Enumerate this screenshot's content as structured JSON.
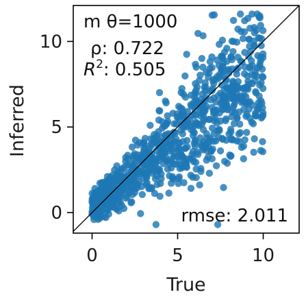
{
  "chart_data": {
    "type": "scatter",
    "xlabel": "True",
    "ylabel": "Inferred",
    "xlim": [
      -1.1,
      12.1
    ],
    "ylim": [
      -1.2,
      12.1
    ],
    "xticks": [
      0,
      5,
      10
    ],
    "yticks": [
      0,
      5,
      10
    ],
    "xtick_labels": [
      "0",
      "5",
      "10"
    ],
    "ytick_labels": [
      "0",
      "5",
      "10"
    ],
    "grid": false,
    "identity_line": true,
    "point_color": "#1f77b4",
    "annotations": {
      "title": "m θ=1000",
      "rho": "ρ: 0.722",
      "r2_sym": "R",
      "r2_sup": "2",
      "r2_val": ": 0.505",
      "rmse": "rmse: 2.011"
    },
    "points": {
      "n": 1000,
      "x_range": [
        0,
        10
      ],
      "y_range": [
        -0.7,
        11.6
      ],
      "rho": 0.722,
      "r2": 0.505,
      "rmse": 2.011
    }
  }
}
